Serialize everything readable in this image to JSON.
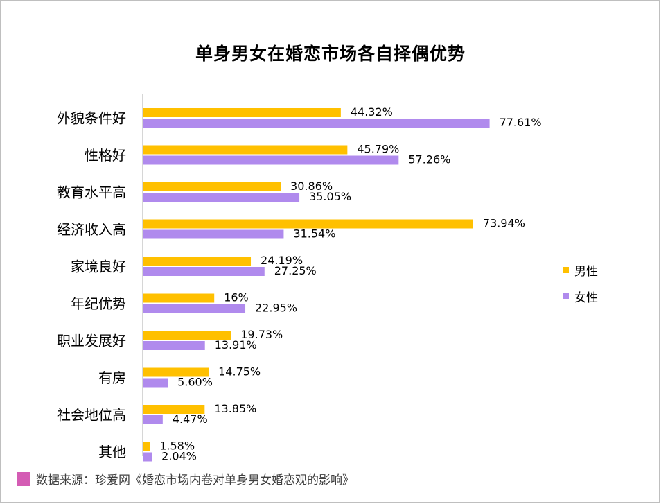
{
  "chart_data": {
    "type": "bar",
    "orientation": "horizontal",
    "title": "单身男女在婚恋市场各自择偶优势",
    "categories": [
      "外貌条件好",
      "性格好",
      "教育水平高",
      "经济收入高",
      "家境良好",
      "年纪优势",
      "职业发展好",
      "有房",
      "社会地位高",
      "其他"
    ],
    "series": [
      {
        "name": "男性",
        "color": "#ffc000",
        "values": [
          44.32,
          45.79,
          30.86,
          73.94,
          24.19,
          16,
          19.73,
          14.75,
          13.85,
          1.58
        ],
        "labels": [
          "44.32%",
          "45.79%",
          "30.86%",
          "73.94%",
          "24.19%",
          "16%",
          "19.73%",
          "14.75%",
          "13.85%",
          "1.58%"
        ]
      },
      {
        "name": "女性",
        "color": "#b08aed",
        "values": [
          77.61,
          57.26,
          35.05,
          31.54,
          27.25,
          22.95,
          13.91,
          5.6,
          4.47,
          2.04
        ],
        "labels": [
          "77.61%",
          "57.26%",
          "35.05%",
          "31.54%",
          "27.25%",
          "22.95%",
          "13.91%",
          "5.60%",
          "4.47%",
          "2.04%"
        ]
      }
    ],
    "xlim": [
      0,
      100
    ],
    "grid": false,
    "legend_position": "right"
  },
  "source": {
    "text": "数据来源：珍爱网《婚恋市场内卷对单身男女婚恋观的影响》",
    "color": "#d45cb4"
  }
}
